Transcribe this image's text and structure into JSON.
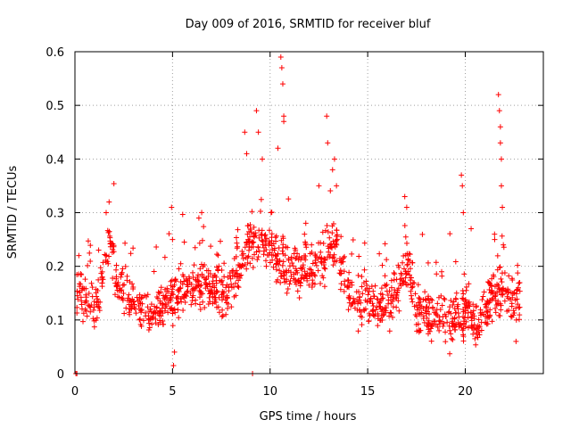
{
  "chart_data": {
    "type": "scatter",
    "title": "Day 009 of 2016, SRMTID for receiver bluf",
    "xlabel": "GPS time / hours",
    "ylabel": "SRMTID / TECUs",
    "xlim": [
      0,
      24
    ],
    "ylim": [
      0,
      0.6
    ],
    "xticks": [
      0,
      5,
      10,
      15,
      20
    ],
    "xtick_labels": [
      "0",
      "5",
      "10",
      "15",
      "20"
    ],
    "yticks": [
      0,
      0.1,
      0.2,
      0.3,
      0.4,
      0.5,
      0.6
    ],
    "ytick_labels": [
      "0",
      "0.1",
      "0.2",
      "0.3",
      "0.4",
      "0.5",
      "0.6"
    ],
    "grid": true,
    "marker": "+",
    "color": "#ff0000",
    "series": [
      {
        "name": "SRMTID",
        "envelope": [
          [
            0.1,
            0.14
          ],
          [
            0.5,
            0.15
          ],
          [
            1.0,
            0.12
          ],
          [
            1.5,
            0.18
          ],
          [
            1.8,
            0.24
          ],
          [
            2.2,
            0.16
          ],
          [
            2.8,
            0.13
          ],
          [
            3.5,
            0.12
          ],
          [
            4.2,
            0.11
          ],
          [
            4.8,
            0.14
          ],
          [
            5.5,
            0.15
          ],
          [
            6.2,
            0.17
          ],
          [
            7.0,
            0.16
          ],
          [
            7.8,
            0.15
          ],
          [
            8.5,
            0.2
          ],
          [
            9.0,
            0.25
          ],
          [
            9.5,
            0.24
          ],
          [
            10.2,
            0.22
          ],
          [
            10.8,
            0.2
          ],
          [
            11.5,
            0.19
          ],
          [
            12.2,
            0.2
          ],
          [
            12.8,
            0.22
          ],
          [
            13.4,
            0.24
          ],
          [
            13.8,
            0.18
          ],
          [
            14.3,
            0.12
          ],
          [
            15.0,
            0.14
          ],
          [
            15.8,
            0.12
          ],
          [
            16.5,
            0.15
          ],
          [
            17.0,
            0.22
          ],
          [
            17.5,
            0.12
          ],
          [
            18.3,
            0.11
          ],
          [
            19.0,
            0.1
          ],
          [
            19.6,
            0.1
          ],
          [
            20.2,
            0.12
          ],
          [
            20.6,
            0.08
          ],
          [
            21.2,
            0.13
          ],
          [
            21.8,
            0.16
          ],
          [
            22.3,
            0.15
          ],
          [
            22.8,
            0.14
          ]
        ],
        "highlights": [
          [
            0.05,
            0.0
          ],
          [
            0.1,
            0.0
          ],
          [
            0.2,
            0.22
          ],
          [
            1.6,
            0.3
          ],
          [
            1.75,
            0.32
          ],
          [
            4.95,
            0.31
          ],
          [
            5.0,
            0.25
          ],
          [
            5.1,
            0.04
          ],
          [
            5.05,
            0.015
          ],
          [
            6.35,
            0.29
          ],
          [
            8.7,
            0.45
          ],
          [
            8.8,
            0.41
          ],
          [
            9.1,
            0.0
          ],
          [
            9.3,
            0.49
          ],
          [
            9.4,
            0.45
          ],
          [
            9.6,
            0.4
          ],
          [
            10.05,
            0.3
          ],
          [
            10.4,
            0.42
          ],
          [
            10.55,
            0.59
          ],
          [
            10.6,
            0.57
          ],
          [
            10.65,
            0.54
          ],
          [
            10.7,
            0.48
          ],
          [
            10.7,
            0.47
          ],
          [
            12.5,
            0.35
          ],
          [
            12.9,
            0.48
          ],
          [
            12.95,
            0.43
          ],
          [
            13.2,
            0.38
          ],
          [
            13.3,
            0.4
          ],
          [
            13.4,
            0.35
          ],
          [
            16.9,
            0.33
          ],
          [
            17.0,
            0.31
          ],
          [
            19.8,
            0.37
          ],
          [
            19.85,
            0.35
          ],
          [
            19.9,
            0.3
          ],
          [
            20.3,
            0.27
          ],
          [
            21.5,
            0.26
          ],
          [
            21.7,
            0.52
          ],
          [
            21.75,
            0.49
          ],
          [
            21.8,
            0.46
          ],
          [
            21.8,
            0.43
          ],
          [
            21.85,
            0.4
          ],
          [
            21.85,
            0.35
          ],
          [
            21.9,
            0.31
          ],
          [
            21.95,
            0.24
          ],
          [
            22.6,
            0.06
          ]
        ]
      }
    ]
  }
}
